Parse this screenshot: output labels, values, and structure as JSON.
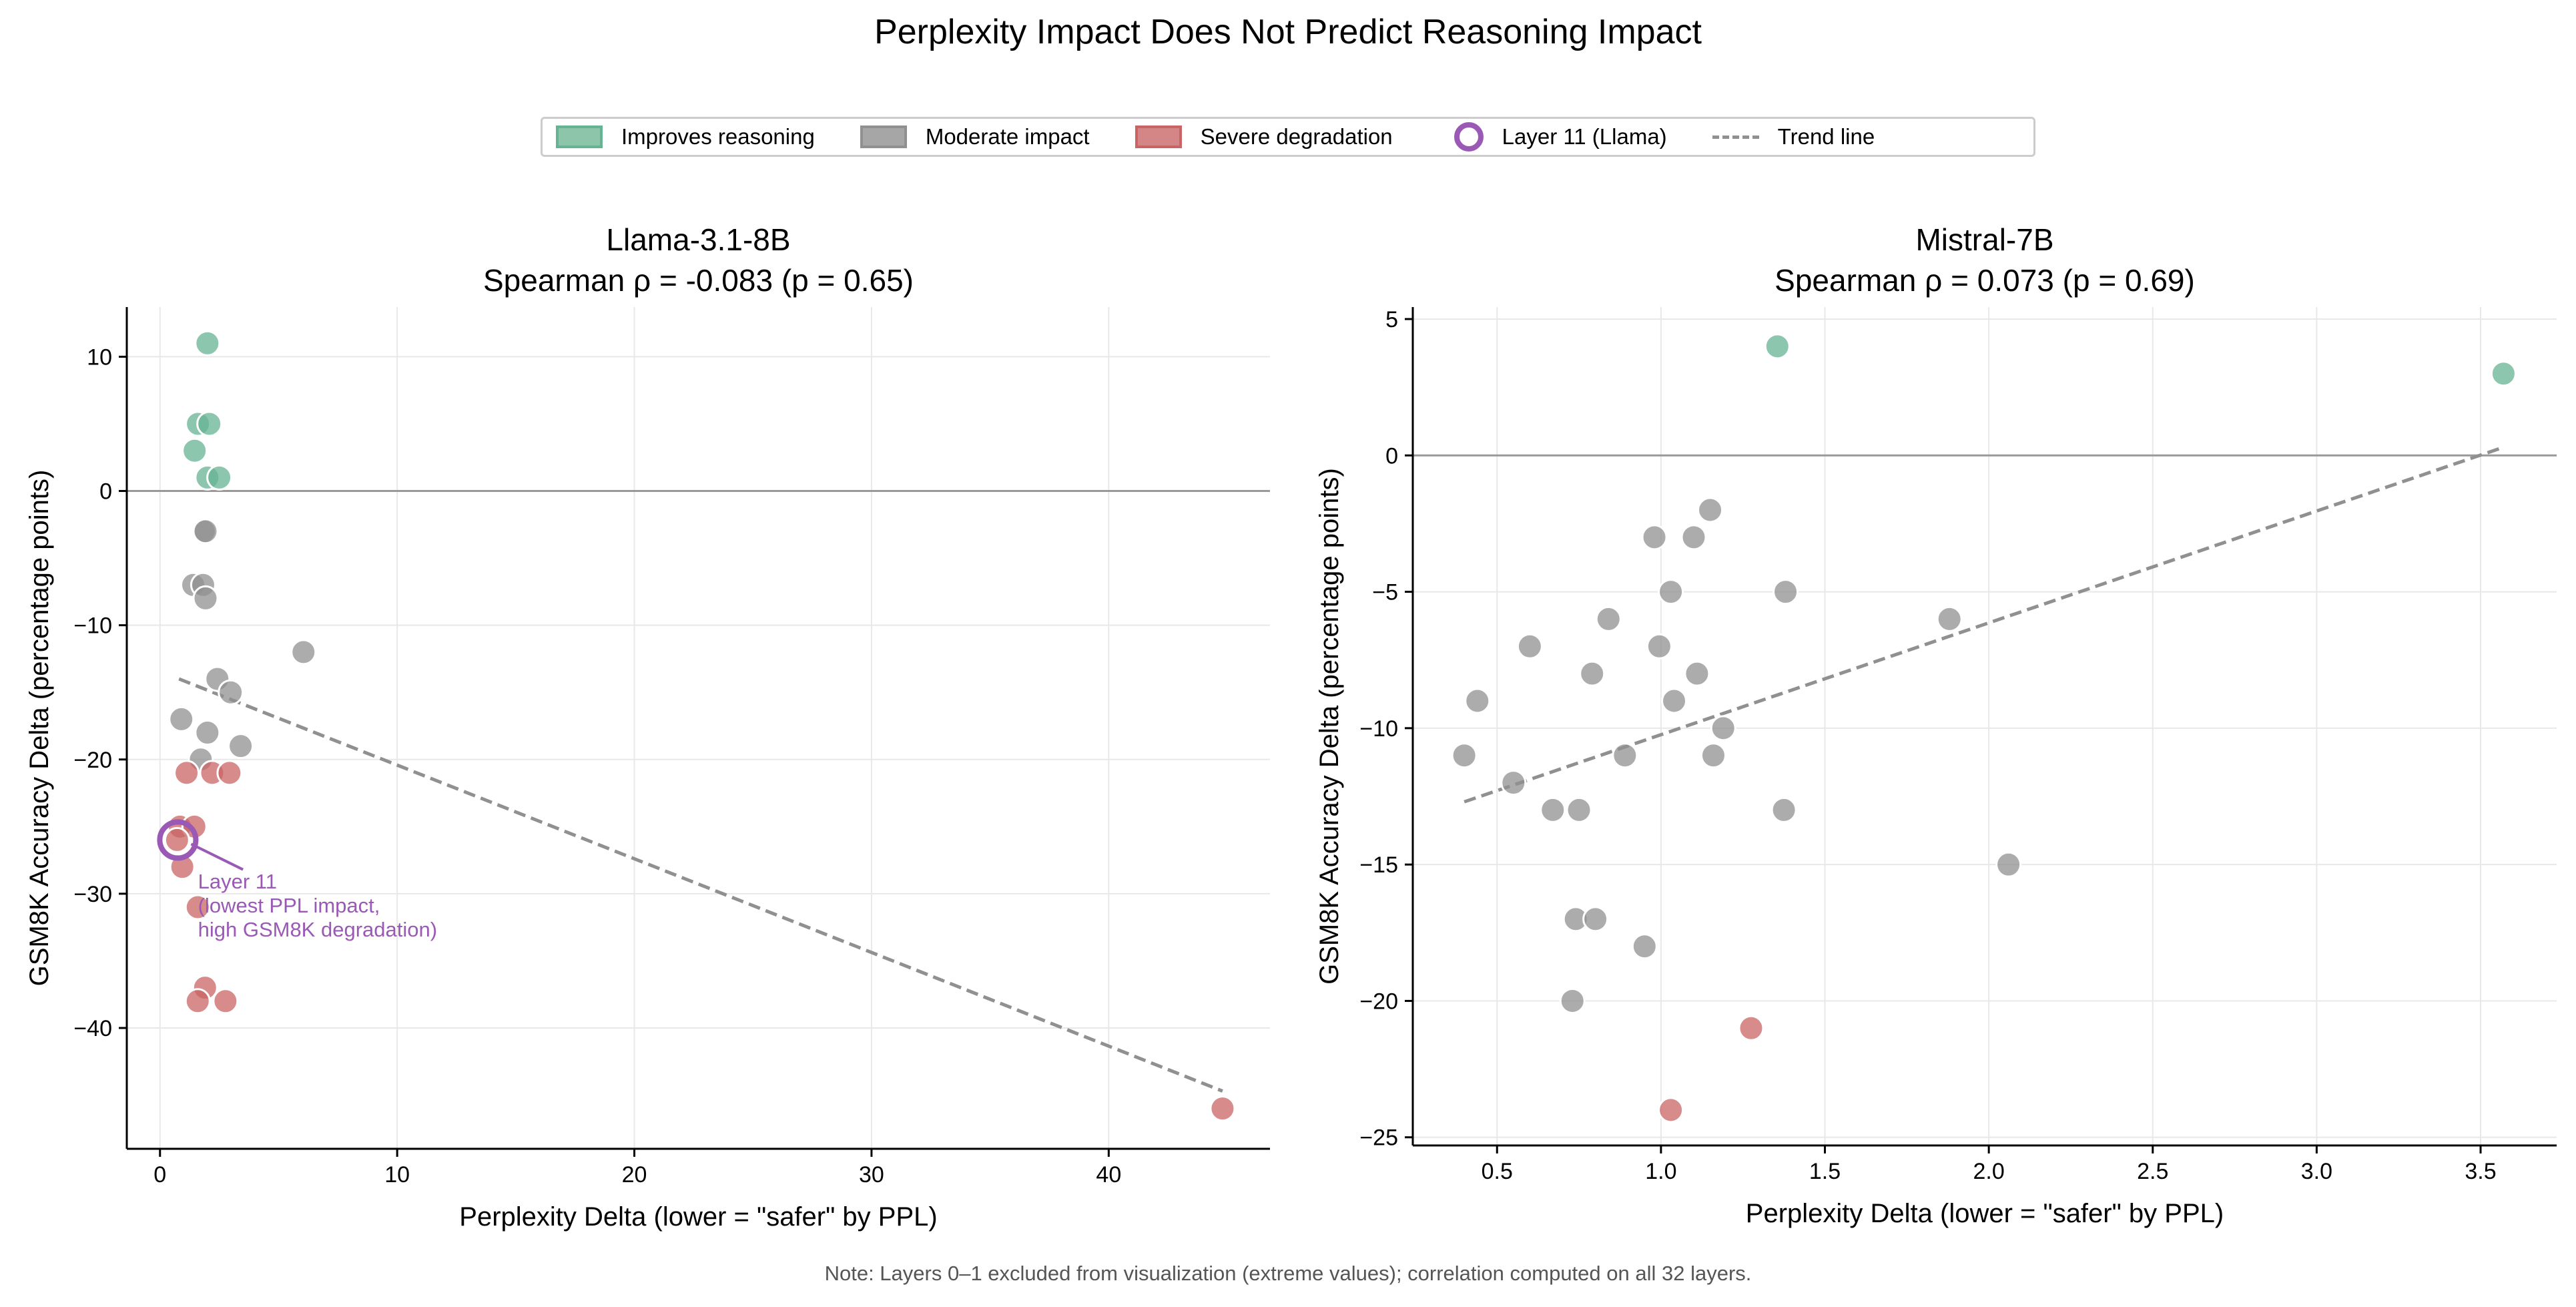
{
  "title": "Perplexity Impact Does Not Predict Reasoning Impact",
  "note": "Note: Layers 0–1 excluded from visualization (extreme values); correlation computed on all 32 layers.",
  "legend": {
    "items": [
      {
        "label": "Improves reasoning",
        "kind": "patch",
        "color": "#66b394"
      },
      {
        "label": "Moderate impact",
        "kind": "patch",
        "color": "#909090"
      },
      {
        "label": "Severe degradation",
        "kind": "patch",
        "color": "#c96464"
      },
      {
        "label": "Layer 11 (Llama)",
        "kind": "ring",
        "color": "#9b59b6"
      },
      {
        "label": "Trend line",
        "kind": "dash",
        "color": "#909090"
      }
    ],
    "placement": "top-center"
  },
  "colors": {
    "improves": "#66b394",
    "moderate": "#909090",
    "severe": "#c96464",
    "highlight": "#9b59b6",
    "trend": "#909090"
  },
  "chart_data": [
    {
      "type": "scatter",
      "title": "Llama-3.1-8B",
      "subtitle": "Spearman ρ = -0.083 (p = 0.65)",
      "xlabel": "Perplexity Delta (lower = \"safer\" by PPL)",
      "ylabel": "GSM8K Accuracy Delta (percentage points)",
      "xlim": [
        -1.4,
        46.8
      ],
      "ylim": [
        -49,
        13.7
      ],
      "xticks": [
        0,
        10,
        20,
        30,
        40
      ],
      "xtick_labels": [
        "0",
        "10",
        "20",
        "30",
        "40"
      ],
      "yticks": [
        10,
        0,
        -10,
        -20,
        -30,
        -40
      ],
      "ytick_labels": [
        "10",
        "0",
        "−10",
        "−20",
        "−30",
        "−40"
      ],
      "grid": true,
      "reference_line_y": 0,
      "points": [
        {
          "x": 2.0,
          "y": 11,
          "cat": "improves"
        },
        {
          "x": 1.6,
          "y": 5,
          "cat": "improves"
        },
        {
          "x": 2.08,
          "y": 5,
          "cat": "improves"
        },
        {
          "x": 1.46,
          "y": 3,
          "cat": "improves"
        },
        {
          "x": 2.0,
          "y": 1,
          "cat": "improves"
        },
        {
          "x": 2.5,
          "y": 1,
          "cat": "improves"
        },
        {
          "x": 1.85,
          "y": -3,
          "cat": "moderate"
        },
        {
          "x": 1.92,
          "y": -3,
          "cat": "moderate"
        },
        {
          "x": 1.4,
          "y": -7,
          "cat": "moderate"
        },
        {
          "x": 1.82,
          "y": -7,
          "cat": "moderate"
        },
        {
          "x": 1.92,
          "y": -8,
          "cat": "moderate"
        },
        {
          "x": 6.05,
          "y": -12,
          "cat": "moderate"
        },
        {
          "x": 2.42,
          "y": -14,
          "cat": "moderate"
        },
        {
          "x": 2.98,
          "y": -15,
          "cat": "moderate"
        },
        {
          "x": 0.9,
          "y": -17,
          "cat": "moderate"
        },
        {
          "x": 2.0,
          "y": -18,
          "cat": "moderate"
        },
        {
          "x": 3.4,
          "y": -19,
          "cat": "moderate"
        },
        {
          "x": 1.72,
          "y": -20,
          "cat": "moderate"
        },
        {
          "x": 1.12,
          "y": -21,
          "cat": "severe"
        },
        {
          "x": 2.2,
          "y": -21,
          "cat": "severe"
        },
        {
          "x": 2.93,
          "y": -21,
          "cat": "severe"
        },
        {
          "x": 0.84,
          "y": -25,
          "cat": "severe"
        },
        {
          "x": 1.45,
          "y": -25,
          "cat": "severe"
        },
        {
          "x": 0.72,
          "y": -26,
          "cat": "severe"
        },
        {
          "x": 0.94,
          "y": -28,
          "cat": "severe"
        },
        {
          "x": 1.59,
          "y": -31,
          "cat": "severe"
        },
        {
          "x": 1.9,
          "y": -37,
          "cat": "severe"
        },
        {
          "x": 1.59,
          "y": -38,
          "cat": "severe"
        },
        {
          "x": 2.76,
          "y": -38,
          "cat": "severe"
        },
        {
          "x": 44.8,
          "y": -46,
          "cat": "severe"
        }
      ],
      "trend": {
        "x": [
          0.8,
          44.8
        ],
        "y": [
          -14.0,
          -44.7
        ]
      },
      "highlight": {
        "x": 0.75,
        "y": -26,
        "label_lines": [
          "Layer 11",
          "(lowest PPL impact,",
          "high GSM8K degradation)"
        ]
      }
    },
    {
      "type": "scatter",
      "title": "Mistral-7B",
      "subtitle": "Spearman ρ = 0.073 (p = 0.69)",
      "xlabel": "Perplexity Delta (lower = \"safer\" by PPL)",
      "ylabel": "GSM8K Accuracy Delta (percentage points)",
      "xlim": [
        0.243,
        3.732
      ],
      "ylim": [
        -25.3,
        5.44
      ],
      "xticks": [
        0.5,
        1.0,
        1.5,
        2.0,
        2.5,
        3.0,
        3.5
      ],
      "xtick_labels": [
        "0.5",
        "1.0",
        "1.5",
        "2.0",
        "2.5",
        "3.0",
        "3.5"
      ],
      "yticks": [
        5,
        0,
        -5,
        -10,
        -15,
        -20,
        -25
      ],
      "ytick_labels": [
        "5",
        "0",
        "−5",
        "−10",
        "−15",
        "−20",
        "−25"
      ],
      "grid": true,
      "reference_line_y": 0,
      "points": [
        {
          "x": 1.355,
          "y": 4,
          "cat": "improves"
        },
        {
          "x": 3.57,
          "y": 3,
          "cat": "improves"
        },
        {
          "x": 1.15,
          "y": -2,
          "cat": "moderate"
        },
        {
          "x": 0.98,
          "y": -3,
          "cat": "moderate"
        },
        {
          "x": 1.1,
          "y": -3,
          "cat": "moderate"
        },
        {
          "x": 1.03,
          "y": -5,
          "cat": "moderate"
        },
        {
          "x": 1.38,
          "y": -5,
          "cat": "moderate"
        },
        {
          "x": 0.84,
          "y": -6,
          "cat": "moderate"
        },
        {
          "x": 1.88,
          "y": -6,
          "cat": "moderate"
        },
        {
          "x": 0.6,
          "y": -7,
          "cat": "moderate"
        },
        {
          "x": 0.995,
          "y": -7,
          "cat": "moderate"
        },
        {
          "x": 0.79,
          "y": -8,
          "cat": "moderate"
        },
        {
          "x": 1.11,
          "y": -8,
          "cat": "moderate"
        },
        {
          "x": 0.44,
          "y": -9,
          "cat": "moderate"
        },
        {
          "x": 1.04,
          "y": -9,
          "cat": "moderate"
        },
        {
          "x": 1.19,
          "y": -10,
          "cat": "moderate"
        },
        {
          "x": 0.4,
          "y": -11,
          "cat": "moderate"
        },
        {
          "x": 0.89,
          "y": -11,
          "cat": "moderate"
        },
        {
          "x": 1.16,
          "y": -11,
          "cat": "moderate"
        },
        {
          "x": 0.55,
          "y": -12,
          "cat": "moderate"
        },
        {
          "x": 0.67,
          "y": -13,
          "cat": "moderate"
        },
        {
          "x": 0.75,
          "y": -13,
          "cat": "moderate"
        },
        {
          "x": 1.375,
          "y": -13,
          "cat": "moderate"
        },
        {
          "x": 2.06,
          "y": -15,
          "cat": "moderate"
        },
        {
          "x": 0.74,
          "y": -17,
          "cat": "moderate"
        },
        {
          "x": 0.8,
          "y": -17,
          "cat": "moderate"
        },
        {
          "x": 0.95,
          "y": -18,
          "cat": "moderate"
        },
        {
          "x": 0.73,
          "y": -20,
          "cat": "moderate"
        },
        {
          "x": 1.275,
          "y": -21,
          "cat": "severe"
        },
        {
          "x": 1.03,
          "y": -24,
          "cat": "severe"
        }
      ],
      "trend": {
        "x": [
          0.4,
          3.57
        ],
        "y": [
          -12.7,
          0.3
        ]
      }
    }
  ]
}
